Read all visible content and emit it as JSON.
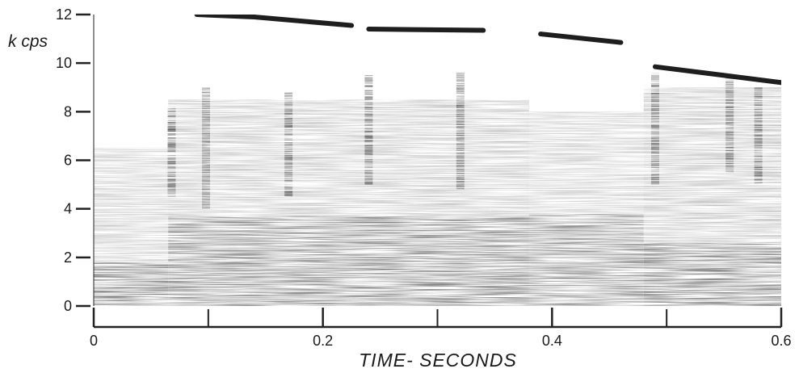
{
  "chart_data": {
    "type": "heatmap",
    "title": "",
    "xlabel": "TIME- SECONDS",
    "ylabel": "k cps",
    "xlim": [
      0,
      0.6
    ],
    "ylim": [
      0,
      12
    ],
    "x_ticks": [
      0,
      0.2,
      0.4,
      0.6
    ],
    "x_tick_labels": [
      "0",
      "0.2",
      "0.4",
      "0.6"
    ],
    "y_ticks": [
      0,
      2,
      4,
      6,
      8,
      10,
      12
    ],
    "y_tick_labels": [
      "0",
      "2",
      "4",
      "6",
      "8",
      "10",
      "12"
    ],
    "grid": false,
    "colors": {
      "ink": "#1e1e1e",
      "background": "#ffffff"
    },
    "regions": [
      {
        "x": [
          0.0,
          0.065
        ],
        "y": [
          0,
          1.8
        ],
        "intensity": 0.88
      },
      {
        "x": [
          0.0,
          0.065
        ],
        "y": [
          1.8,
          6.5
        ],
        "intensity": 0.32
      },
      {
        "x": [
          0.065,
          0.38
        ],
        "y": [
          0,
          3.7
        ],
        "intensity": 0.82
      },
      {
        "x": [
          0.065,
          0.38
        ],
        "y": [
          3.7,
          8.5
        ],
        "intensity": 0.36
      },
      {
        "x": [
          0.38,
          0.48
        ],
        "y": [
          0,
          3.8
        ],
        "intensity": 0.75
      },
      {
        "x": [
          0.38,
          0.48
        ],
        "y": [
          3.8,
          8.0
        ],
        "intensity": 0.3
      },
      {
        "x": [
          0.48,
          0.6
        ],
        "y": [
          0,
          2.6
        ],
        "intensity": 0.85
      },
      {
        "x": [
          0.48,
          0.6
        ],
        "y": [
          2.6,
          9.0
        ],
        "intensity": 0.38
      }
    ],
    "striations": [
      {
        "x": 0.068,
        "y": [
          4.5,
          8.2
        ]
      },
      {
        "x": 0.098,
        "y": [
          4.0,
          9.0
        ]
      },
      {
        "x": 0.17,
        "y": [
          4.5,
          8.8
        ]
      },
      {
        "x": 0.24,
        "y": [
          5.0,
          9.5
        ]
      },
      {
        "x": 0.32,
        "y": [
          4.8,
          9.6
        ]
      },
      {
        "x": 0.49,
        "y": [
          5.0,
          9.6
        ]
      },
      {
        "x": 0.555,
        "y": [
          5.5,
          9.4
        ]
      },
      {
        "x": 0.58,
        "y": [
          5.0,
          9.0
        ]
      }
    ],
    "formant_lines": [
      {
        "x": [
          0.09,
          0.14
        ],
        "y": [
          12.0,
          11.9
        ]
      },
      {
        "x": [
          0.14,
          0.225
        ],
        "y": [
          11.9,
          11.55
        ]
      },
      {
        "x": [
          0.24,
          0.34
        ],
        "y": [
          11.4,
          11.35
        ]
      },
      {
        "x": [
          0.39,
          0.46
        ],
        "y": [
          11.2,
          10.85
        ]
      },
      {
        "x": [
          0.49,
          0.6
        ],
        "y": [
          9.85,
          9.2
        ]
      }
    ]
  }
}
